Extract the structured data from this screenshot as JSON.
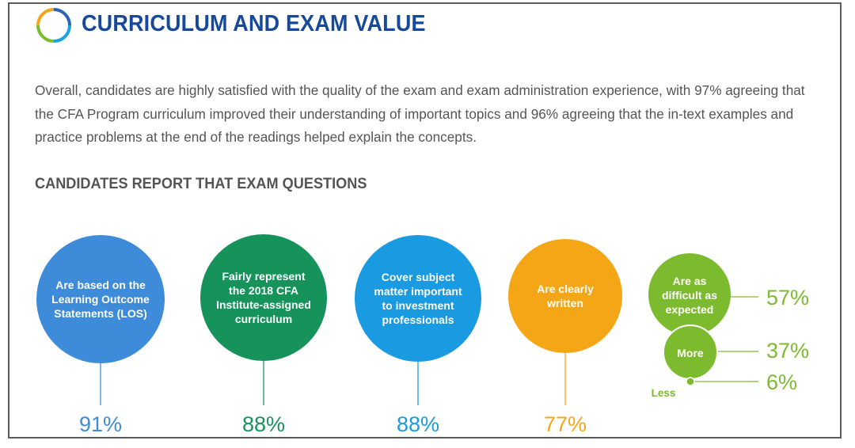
{
  "header": {
    "title": "CURRICULUM AND EXAM VALUE",
    "icon": "ring-logo-icon"
  },
  "intro": {
    "text": "Overall, candidates are highly satisfied with the quality of the exam and exam administration experience, with 97% agreeing that the CFA Program curriculum improved their understanding of important topics and 96% agreeing that the in-text examples and practice problems at the end of the readings helped explain the concepts."
  },
  "section": {
    "heading": "CANDIDATES REPORT THAT EXAM QUESTIONS"
  },
  "items": [
    {
      "lines": [
        "Are based on the",
        "Learning Outcome",
        "Statements (LOS)"
      ],
      "percent": "91%",
      "color": "#3d8bd9"
    },
    {
      "lines": [
        "Fairly represent",
        "the 2018 CFA",
        "Institute-assigned",
        "curriculum"
      ],
      "percent": "88%",
      "color": "#16935a"
    },
    {
      "lines": [
        "Cover subject",
        "matter important",
        "to investment",
        "professionals"
      ],
      "percent": "88%",
      "color": "#1a9ae0"
    },
    {
      "lines": [
        "Are clearly",
        "written"
      ],
      "percent": "77%",
      "color": "#f5a616"
    }
  ],
  "difficulty": {
    "color": "#7dbb2e",
    "options": [
      {
        "lines": [
          "Are as",
          "difficult as",
          "expected"
        ],
        "percent": "57%"
      },
      {
        "lines": [
          "More"
        ],
        "percent": "37%"
      },
      {
        "lines": [
          "Less"
        ],
        "percent": "6%"
      }
    ]
  }
}
